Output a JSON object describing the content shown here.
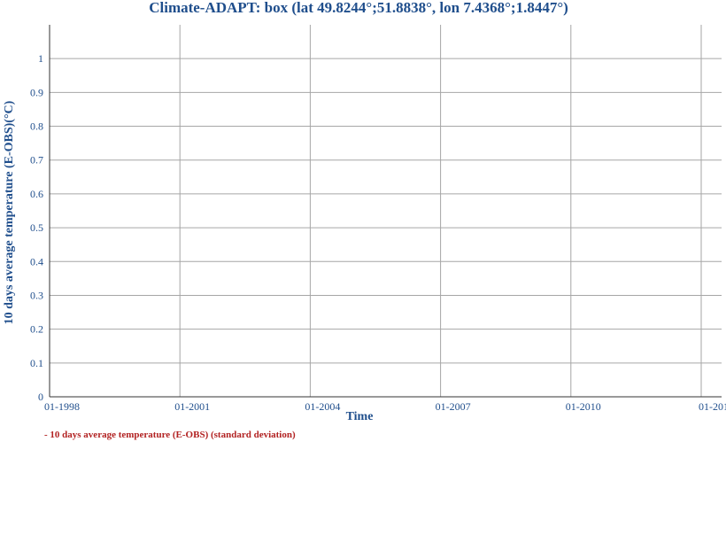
{
  "chart_data": {
    "type": "line",
    "title": "Climate-ADAPT: box (lat 49.8244°;51.8838°, lon 7.4368°;1.8447°)",
    "xlabel": "Time",
    "ylabel": "10 days average temperature (E-OBS)(°C)",
    "x_ticks": [
      "01-1998",
      "01-2001",
      "01-2004",
      "01-2007",
      "01-2010",
      "01-201"
    ],
    "y_ticks": [
      "0",
      "0.1",
      "0.2",
      "0.3",
      "0.4",
      "0.5",
      "0.6",
      "0.7",
      "0.8",
      "0.9",
      "1"
    ],
    "ylim": [
      0,
      1.1
    ],
    "grid": true,
    "legend_position": "bottom-left",
    "series": [
      {
        "name": "- 10 days average temperature (E-OBS) (standard deviation)",
        "color": "#b22222",
        "values": []
      }
    ]
  }
}
